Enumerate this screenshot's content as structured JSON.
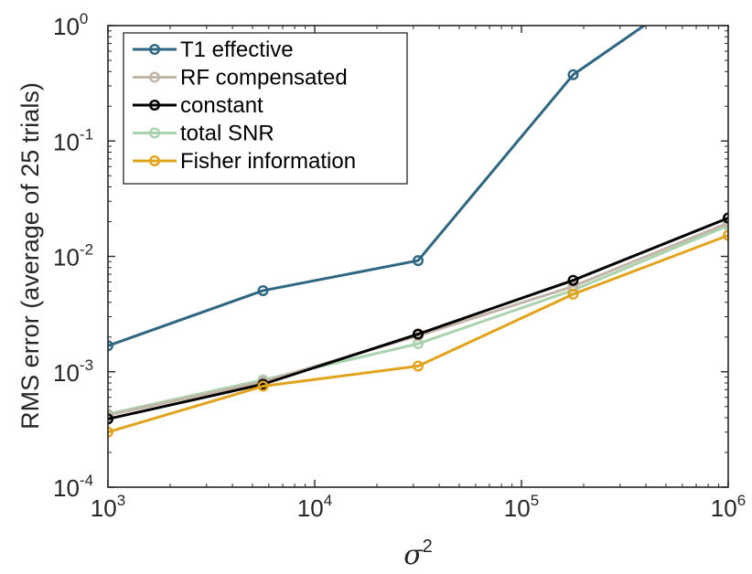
{
  "chart_data": {
    "type": "line",
    "xscale": "log",
    "yscale": "log",
    "xlabel": "σ",
    "xlabel_superscript": "2",
    "ylabel": "RMS error (average of 25 trials)",
    "xlim": [
      1000,
      1000000
    ],
    "ylim": [
      0.0001,
      1
    ],
    "x_ticks": [
      {
        "value": 1000,
        "base": "10",
        "exp": "3"
      },
      {
        "value": 10000,
        "base": "10",
        "exp": "4"
      },
      {
        "value": 100000,
        "base": "10",
        "exp": "5"
      },
      {
        "value": 1000000,
        "base": "10",
        "exp": "6"
      }
    ],
    "y_ticks": [
      {
        "value": 0.0001,
        "base": "10",
        "exp": "-4"
      },
      {
        "value": 0.001,
        "base": "10",
        "exp": "-3"
      },
      {
        "value": 0.01,
        "base": "10",
        "exp": "-2"
      },
      {
        "value": 0.1,
        "base": "10",
        "exp": "-1"
      },
      {
        "value": 1,
        "base": "10",
        "exp": "0"
      }
    ],
    "legend_position": "top-left",
    "grid": false,
    "series": [
      {
        "name": "T1 effective",
        "color": "#2f6682",
        "x": [
          1000,
          5623,
          31623,
          177828,
          1000000
        ],
        "y": [
          0.00168,
          0.00505,
          0.0092,
          0.375,
          3.2
        ]
      },
      {
        "name": "RF compensated",
        "color": "#c2b4a6",
        "x": [
          1000,
          5623,
          31623,
          177828,
          1000000
        ],
        "y": [
          0.00042,
          0.00082,
          0.00205,
          0.0055,
          0.0195
        ]
      },
      {
        "name": "constant",
        "color": "#000000",
        "x": [
          1000,
          5623,
          31623,
          177828,
          1000000
        ],
        "y": [
          0.00039,
          0.00078,
          0.00212,
          0.0062,
          0.0215
        ]
      },
      {
        "name": "total SNR",
        "color": "#a9d3ad",
        "x": [
          1000,
          5623,
          31623,
          177828,
          1000000
        ],
        "y": [
          0.00043,
          0.00085,
          0.00175,
          0.0051,
          0.0185
        ]
      },
      {
        "name": "Fisher information",
        "color": "#e2a31c",
        "x": [
          1000,
          5623,
          31623,
          177828,
          1000000
        ],
        "y": [
          0.0003,
          0.00075,
          0.00112,
          0.0047,
          0.0152
        ]
      }
    ]
  }
}
